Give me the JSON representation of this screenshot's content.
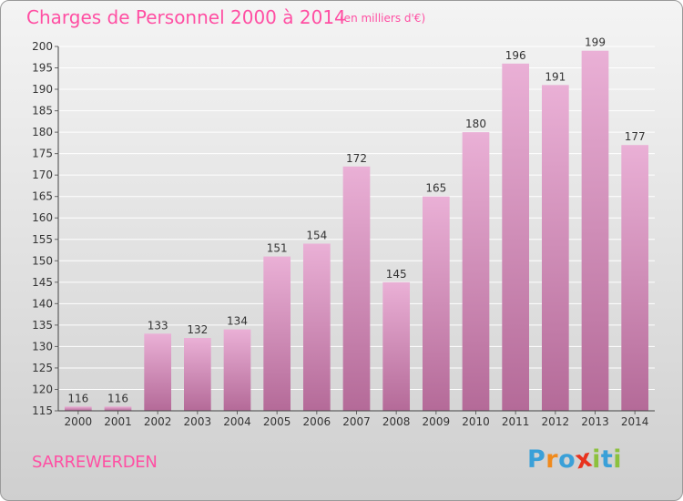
{
  "header": {
    "title": "Charges de Personnel 2000 à 2014",
    "subtitle": "(en milliers d'€)"
  },
  "footer": {
    "city": "SARREWERDEN",
    "brand": "Proxiti"
  },
  "colors": {
    "title": "#ff4fa3",
    "bar_light": "#eab0d6",
    "bar_dark": "#b46a98",
    "brand_letters": [
      "#3aa0d8",
      "#f08a1c",
      "#3aa0d8",
      "#e8321e",
      "#8cc13e",
      "#3aa0d8",
      "#8cc13e"
    ]
  },
  "chart_data": {
    "type": "bar",
    "categories": [
      "2000",
      "2001",
      "2002",
      "2003",
      "2004",
      "2005",
      "2006",
      "2007",
      "2008",
      "2009",
      "2010",
      "2011",
      "2012",
      "2013",
      "2014"
    ],
    "values": [
      116,
      116,
      133,
      132,
      134,
      151,
      154,
      172,
      145,
      165,
      180,
      196,
      191,
      199,
      177
    ],
    "ylim": [
      115,
      200
    ],
    "yticks": [
      115,
      120,
      125,
      130,
      135,
      140,
      145,
      150,
      155,
      160,
      165,
      170,
      175,
      180,
      185,
      190,
      195,
      200
    ],
    "grid": true,
    "xlabel": "",
    "ylabel": ""
  }
}
